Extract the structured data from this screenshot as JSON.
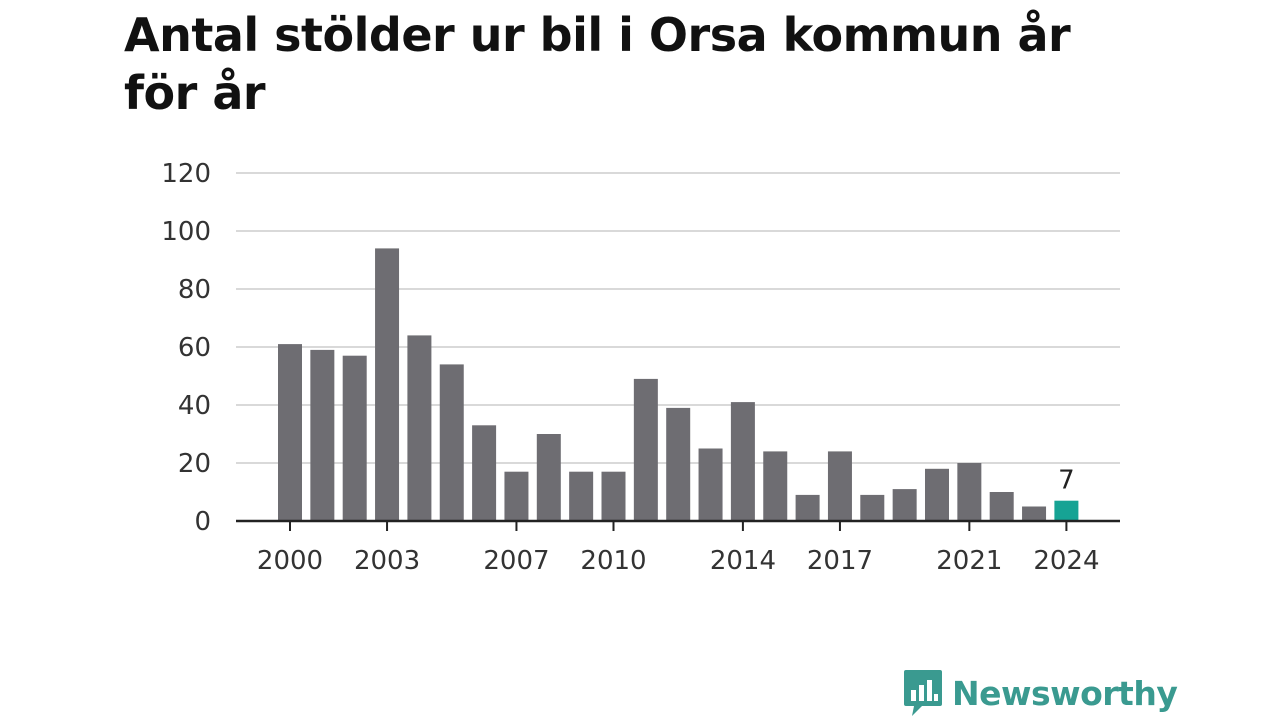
{
  "chart_data": {
    "type": "bar",
    "title": "Antal stölder ur bil i Orsa kommun år för år",
    "categories": [
      "2000",
      "2001",
      "2002",
      "2003",
      "2004",
      "2005",
      "2006",
      "2007",
      "2008",
      "2009",
      "2010",
      "2011",
      "2012",
      "2013",
      "2014",
      "2015",
      "2016",
      "2017",
      "2018",
      "2019",
      "2020",
      "2021",
      "2022",
      "2023",
      "2024"
    ],
    "values": [
      61,
      59,
      57,
      94,
      64,
      54,
      33,
      17,
      30,
      17,
      17,
      49,
      39,
      25,
      41,
      24,
      9,
      24,
      9,
      11,
      18,
      20,
      10,
      5,
      7
    ],
    "xlabel": "",
    "ylabel": "",
    "ylim": [
      0,
      120
    ],
    "yticks": [
      "0",
      "20",
      "40",
      "60",
      "80",
      "100",
      "120"
    ],
    "xticks": [
      "2000",
      "2003",
      "2007",
      "2010",
      "2014",
      "2017",
      "2021",
      "2024"
    ],
    "grid": true,
    "bar_color": "#6e6d72",
    "highlight_color": "#16a394",
    "highlight_index": 24,
    "highlight_label": "7"
  },
  "logo": {
    "text": "Newsworthy",
    "icon": "newsworthy-chart-icon",
    "color": "#3a9a90"
  }
}
